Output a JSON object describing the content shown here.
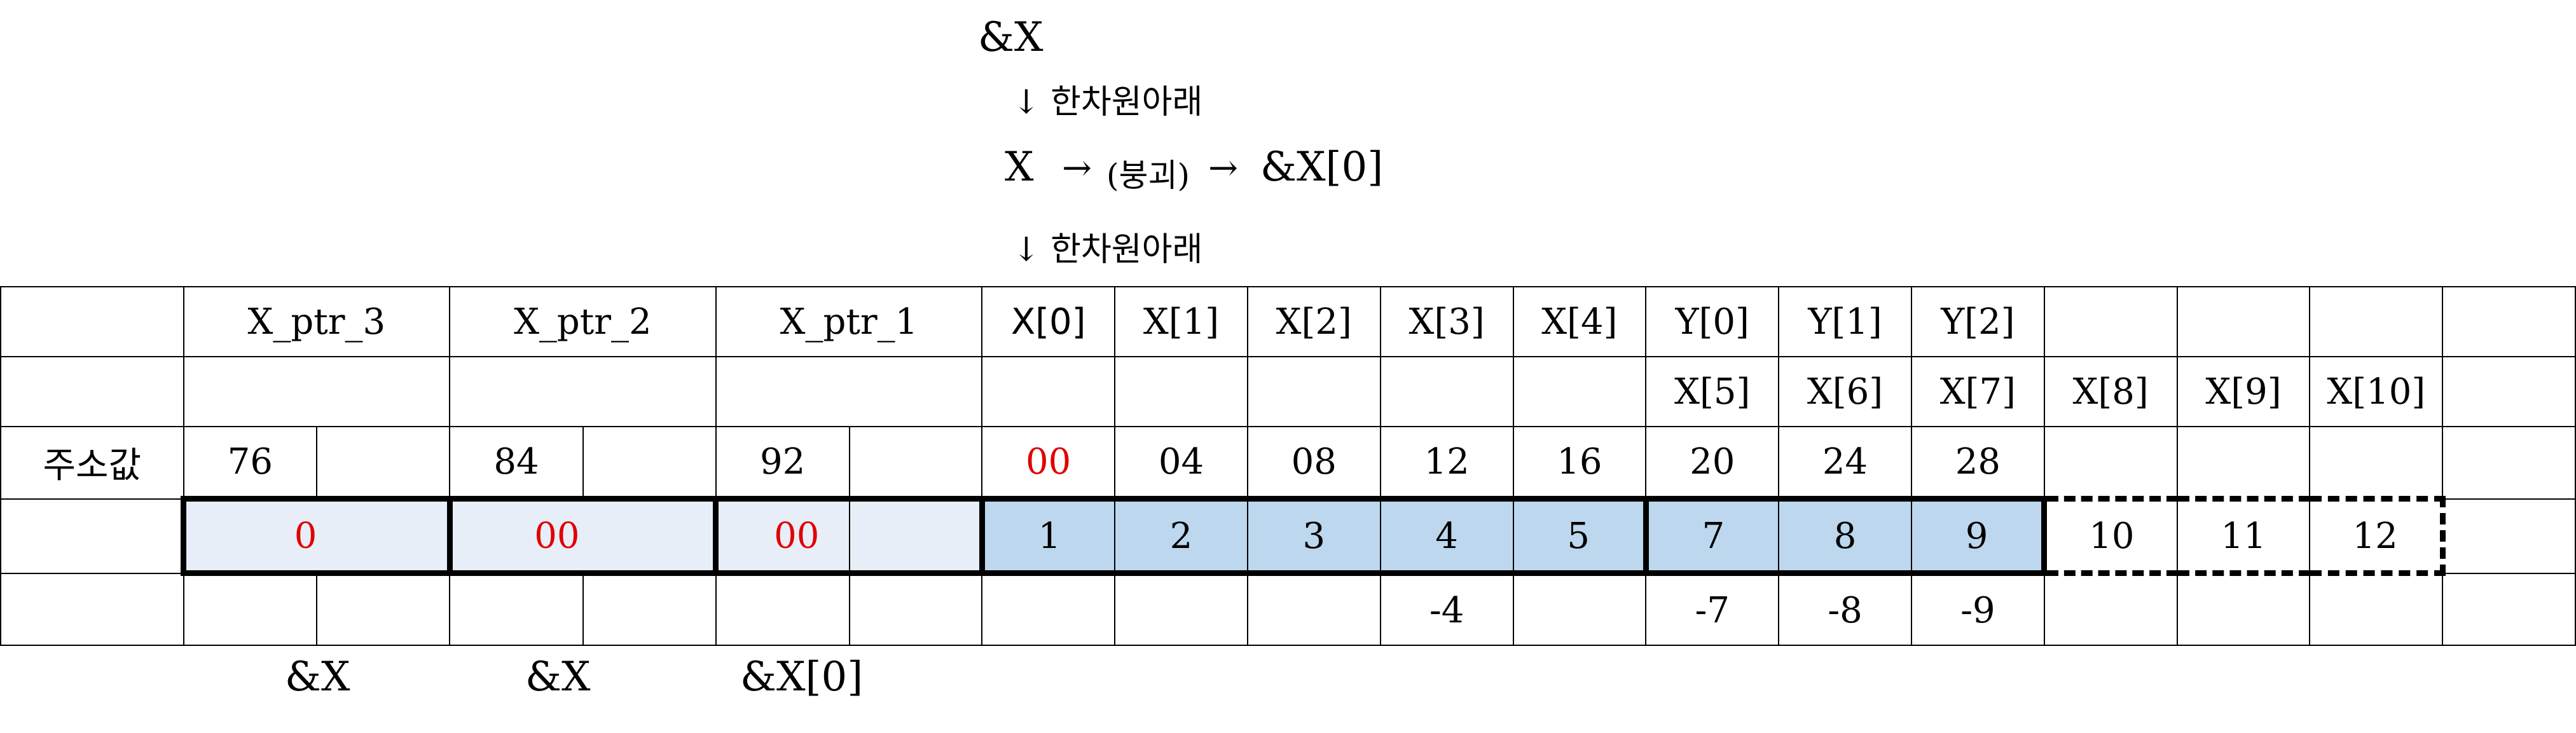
{
  "top": {
    "amp_x": "&X",
    "arrow_down_1": "↓ 한차원아래",
    "x_label": "X",
    "arrow_right_1": "→",
    "collapse_label": "(붕괴)",
    "arrow_right_2": "→",
    "amp_x0": "&X[0]",
    "arrow_down_2": "↓ 한차원아래"
  },
  "table": {
    "header_row": [
      "",
      "X_ptr_3",
      "X_ptr_2",
      "X_ptr_1",
      "X[0]",
      "X[1]",
      "X[2]",
      "X[3]",
      "X[4]",
      "Y[0]",
      "Y[1]",
      "Y[2]",
      "",
      "",
      "",
      ""
    ],
    "alias_row": [
      "",
      "",
      "",
      "",
      "",
      "",
      "",
      "",
      "",
      "X[5]",
      "X[6]",
      "X[7]",
      "X[8]",
      "X[9]",
      "X[10]",
      ""
    ],
    "address_label": "주소값",
    "addresses": [
      "76",
      "84",
      "92",
      "00",
      "04",
      "08",
      "12",
      "16",
      "20",
      "24",
      "28"
    ],
    "pointer_values": [
      "00",
      "00",
      "00"
    ],
    "array_values": [
      "1",
      "2",
      "3",
      "4",
      "5",
      "7",
      "8",
      "9"
    ],
    "dashed_values": [
      "10",
      "11",
      "12"
    ],
    "negatives": {
      "x3": "-4",
      "y0": "-7",
      "y1": "-8",
      "y2": "-9"
    }
  },
  "bottom": {
    "ptr3_target": "&X",
    "ptr2_target": "&X",
    "ptr1_target": "&X[0]"
  },
  "colors": {
    "pointer_fill": "#e8eef7",
    "array_fill": "#bdd7ee",
    "highlight_text": "#e00000"
  }
}
